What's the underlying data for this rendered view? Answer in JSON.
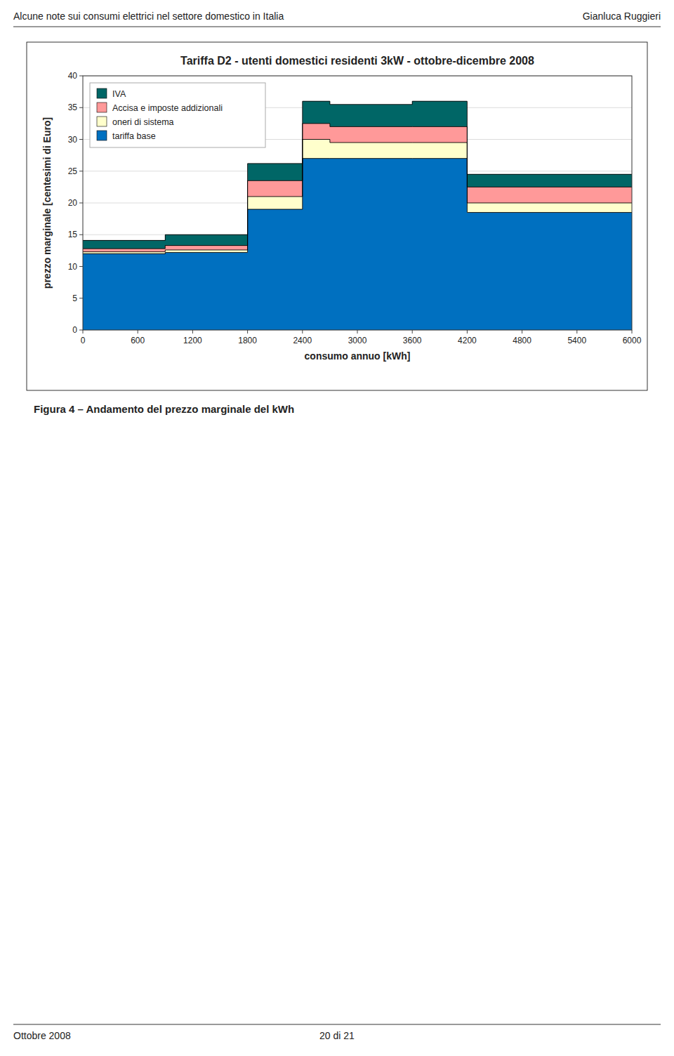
{
  "chart_data": {
    "type": "area",
    "stacked": true,
    "line_style": "step",
    "title": "Tariffa D2 - utenti domestici residenti 3kW - ottobre-dicembre 2008",
    "x_label": "consumo annuo [kWh]",
    "y_label": "prezzo marginale [centesimi di Euro]",
    "x": [
      0,
      900,
      1800,
      2400,
      2700,
      3600,
      4200,
      6000
    ],
    "series": [
      {
        "name": "tariffa base",
        "color": "#0070C0",
        "values": [
          12.0,
          12.2,
          19.0,
          27.0,
          27.0,
          27.0,
          18.5,
          18.5
        ]
      },
      {
        "name": "oneri di sistema",
        "color": "#FFFFCC",
        "values": [
          0.3,
          0.4,
          2.0,
          3.0,
          2.5,
          2.5,
          1.5,
          1.5
        ]
      },
      {
        "name": "Accisa e imposte addizionali",
        "color": "#FF9999",
        "values": [
          0.5,
          0.7,
          2.5,
          2.5,
          2.5,
          2.5,
          2.5,
          2.5
        ]
      },
      {
        "name": "IVA",
        "color": "#006666",
        "values": [
          1.3,
          1.7,
          2.7,
          3.5,
          3.5,
          4.0,
          2.0,
          2.0
        ]
      }
    ],
    "xlim": [
      0,
      6000
    ],
    "ylim": [
      0,
      40
    ],
    "xticks": [
      0,
      600,
      1200,
      1800,
      2400,
      3000,
      3600,
      4200,
      4800,
      5400,
      6000
    ],
    "yticks": [
      0,
      5,
      10,
      15,
      20,
      25,
      30,
      35,
      40
    ],
    "grid": true,
    "legend": "upper-left"
  },
  "header": {
    "left": "Alcune note sui consumi elettrici nel settore domestico in Italia",
    "right": "Gianluca Ruggieri"
  },
  "footer": {
    "left": "Ottobre 2008",
    "center": "20 di 21"
  },
  "caption": "Figura 4 – Andamento del prezzo marginale del kWh"
}
